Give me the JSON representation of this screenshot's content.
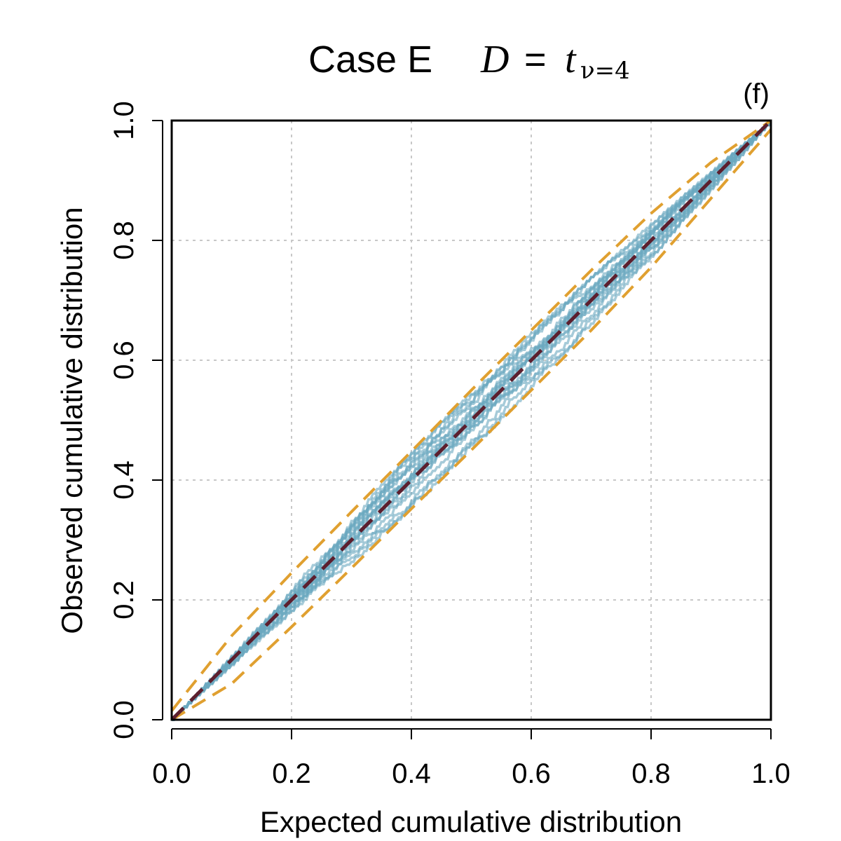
{
  "chart_data": {
    "type": "line",
    "title": {
      "case": "Case E",
      "variable": "D",
      "equals": "=",
      "distribution": "t",
      "subscript": "ν=4"
    },
    "panel_label": "(f)",
    "xlabel": "Expected cumulative distribution",
    "ylabel": "Observed cumulative distribution",
    "xlim": [
      0.0,
      1.0
    ],
    "ylim": [
      0.0,
      1.0
    ],
    "xticks": [
      "0.0",
      "0.2",
      "0.4",
      "0.6",
      "0.8",
      "1.0"
    ],
    "yticks": [
      "0.0",
      "0.2",
      "0.4",
      "0.6",
      "0.8",
      "1.0"
    ],
    "grid": true,
    "series": [
      {
        "name": "Simulated replicates",
        "color": "#6aa9bf",
        "count": 20,
        "range_around_identity": 0.03
      },
      {
        "name": "Confidence envelope",
        "color": "#e0a030",
        "x": [
          0.0,
          0.1,
          0.2,
          0.3,
          0.4,
          0.5,
          0.6,
          0.7,
          0.8,
          0.9,
          1.0
        ],
        "upper": [
          0.015,
          0.14,
          0.245,
          0.347,
          0.448,
          0.55,
          0.65,
          0.75,
          0.845,
          0.93,
          1.0
        ],
        "lower": [
          0.0,
          0.06,
          0.155,
          0.253,
          0.352,
          0.45,
          0.55,
          0.65,
          0.755,
          0.87,
          0.985
        ]
      },
      {
        "name": "Identity line",
        "color": "#5c1f2e",
        "x": [
          0.0,
          1.0
        ],
        "y": [
          0.0,
          1.0
        ]
      }
    ]
  }
}
